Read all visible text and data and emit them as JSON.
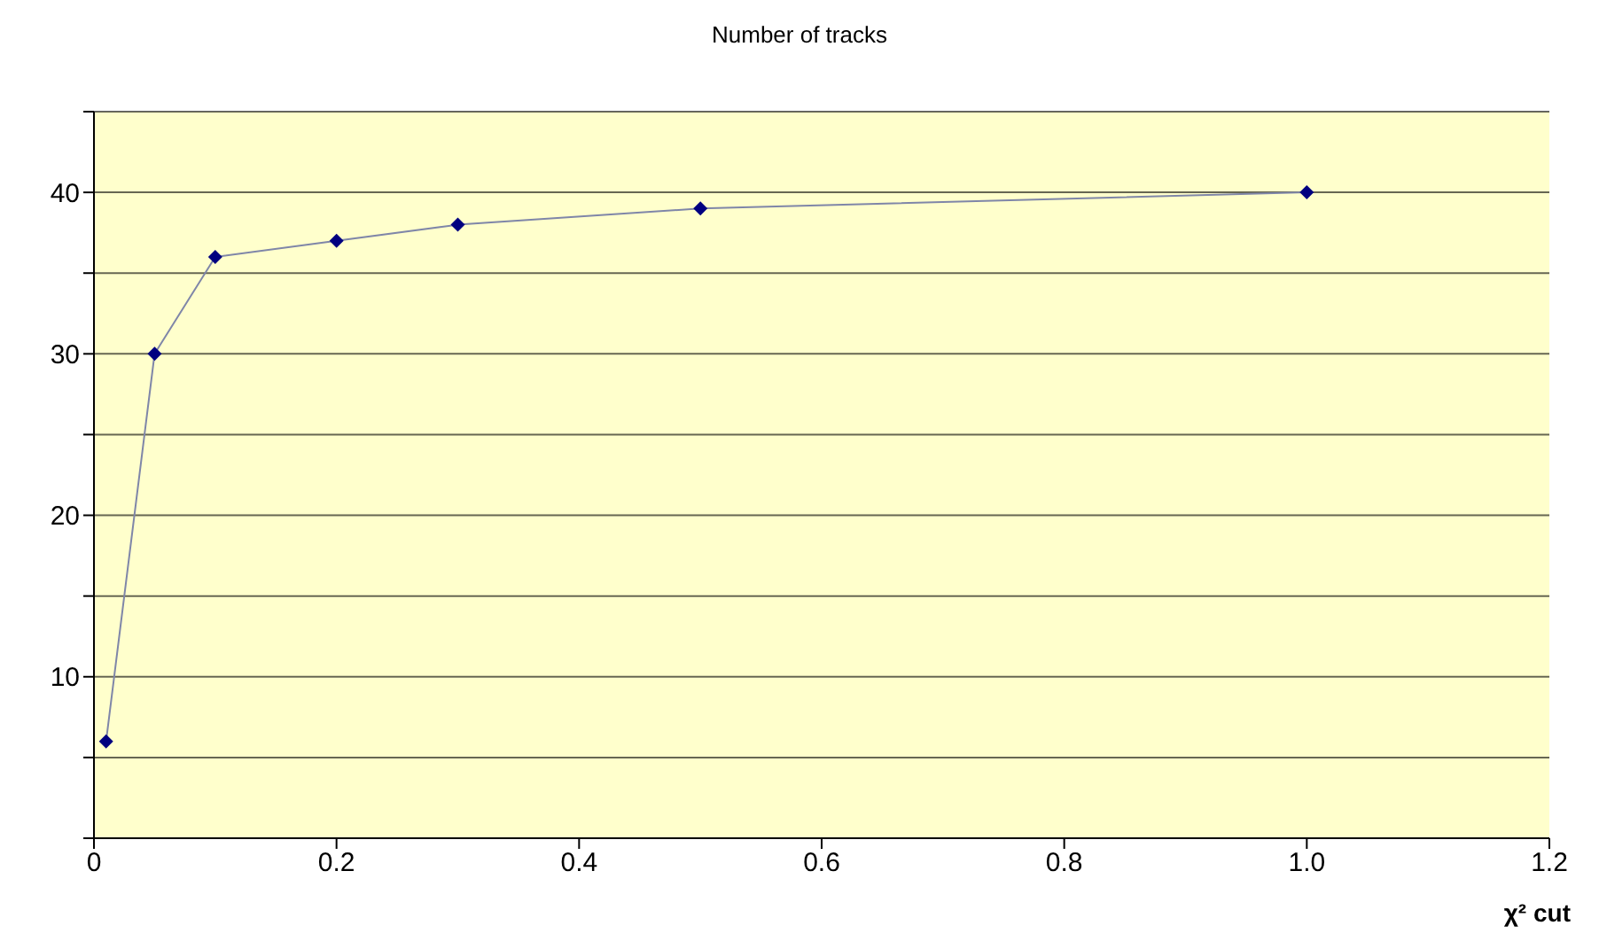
{
  "chart_data": {
    "type": "line",
    "title": "Number of tracks",
    "xlabel": "χ² cut",
    "x": [
      0.01,
      0.05,
      0.1,
      0.2,
      0.3,
      0.5,
      1.0
    ],
    "series": [
      {
        "color": "#000080",
        "values": [
          6,
          30,
          36,
          37,
          38,
          39,
          40
        ]
      }
    ],
    "xlim": [
      0,
      1.2
    ],
    "xticks": [
      0,
      0.2,
      0.4,
      0.6,
      0.8,
      {
        "value": 1.0,
        "label": "1.0"
      },
      1.2
    ],
    "ylim": [
      0,
      45
    ],
    "yticks": [
      {
        "value": 0,
        "label": null
      },
      {
        "value": 5,
        "label": null
      },
      10,
      {
        "value": 15,
        "label": null
      },
      20,
      {
        "value": 25,
        "label": null
      },
      30,
      {
        "value": 35,
        "label": null
      },
      40,
      {
        "value": 45,
        "label": null
      }
    ],
    "grid": "y",
    "marker": "diamond",
    "line_style": "solid"
  }
}
